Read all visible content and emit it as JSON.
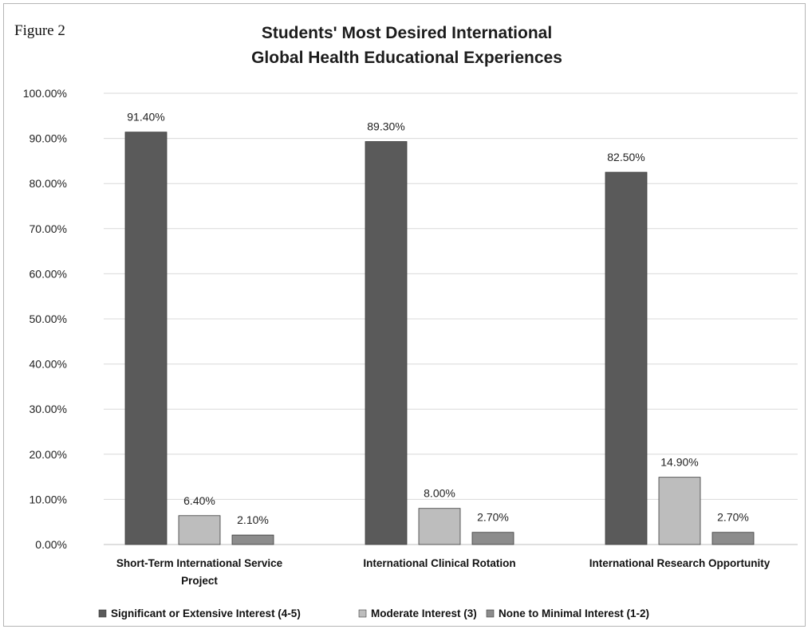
{
  "figure_label": "Figure 2",
  "chart_data": {
    "type": "bar",
    "title": "Students' Most Desired International Global Health Educational Experiences",
    "title_lines": [
      "Students' Most Desired International",
      "Global Health Educational Experiences"
    ],
    "categories": [
      "Short-Term International Service Project",
      "International Clinical Rotation",
      "International Research Opportunity"
    ],
    "category_label_lines": [
      [
        "Short-Term International Service",
        "Project"
      ],
      [
        "International Clinical Rotation"
      ],
      [
        "International Research Opportunity"
      ]
    ],
    "series": [
      {
        "name": "Significant or Extensive Interest (4-5)",
        "color": "#5a5a5a",
        "values": [
          91.4,
          89.3,
          82.5
        ],
        "labels": [
          "91.40%",
          "89.30%",
          "82.50%"
        ]
      },
      {
        "name": "Moderate Interest (3)",
        "color": "#bdbdbd",
        "values": [
          6.4,
          8.0,
          14.9
        ],
        "labels": [
          "6.40%",
          "8.00%",
          "14.90%"
        ]
      },
      {
        "name": "None to Minimal Interest (1-2)",
        "color": "#8c8c8c",
        "values": [
          2.1,
          2.7,
          2.7
        ],
        "labels": [
          "2.10%",
          "2.70%",
          "2.70%"
        ]
      }
    ],
    "y_ticks": [
      "0.00%",
      "10.00%",
      "20.00%",
      "30.00%",
      "40.00%",
      "50.00%",
      "60.00%",
      "70.00%",
      "80.00%",
      "90.00%",
      "100.00%"
    ],
    "ylim": [
      0,
      100
    ],
    "xlabel": "",
    "ylabel": "",
    "grid": true,
    "legend_position": "bottom"
  }
}
